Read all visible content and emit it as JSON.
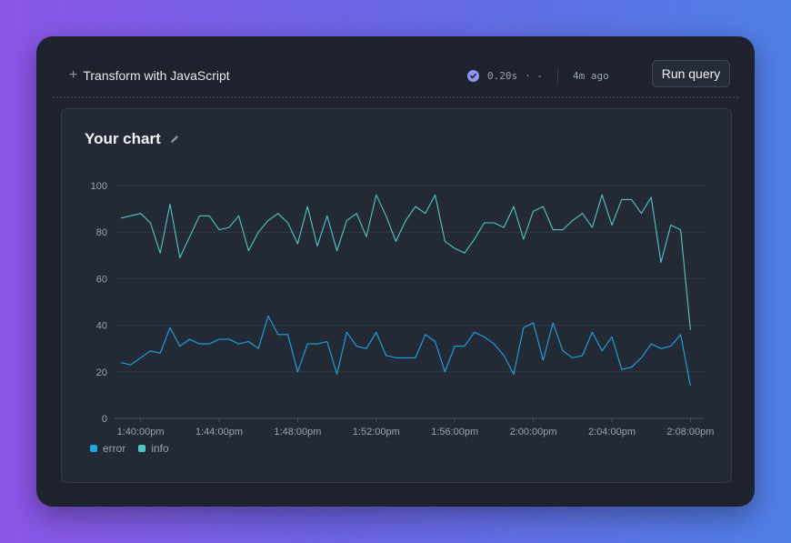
{
  "toolbar": {
    "transform_label": "Transform with JavaScript",
    "status": {
      "duration": "0.20s",
      "dots": "· -",
      "time_ago": "4m ago"
    },
    "run_label": "Run query"
  },
  "chart_panel": {
    "title": "Your chart",
    "icons": {
      "edit": "pencil-icon",
      "status": "check-circle-icon",
      "add": "plus-icon"
    }
  },
  "colors": {
    "error": "#1ea7e4",
    "info": "#4fc7c6",
    "accent": "#8f96f2"
  },
  "chart_data": {
    "type": "line",
    "title": "",
    "xlabel": "",
    "ylabel": "",
    "ylim": [
      0,
      100
    ],
    "yticks": [
      0,
      20,
      40,
      60,
      80,
      100
    ],
    "xtick_labels": [
      "1:40:00pm",
      "1:44:00pm",
      "1:48:00pm",
      "1:52:00pm",
      "1:56:00pm",
      "2:00:00pm",
      "2:04:00pm",
      "2:08:00pm"
    ],
    "grid": true,
    "legend_position": "bottom-left",
    "x_start": "1:39:00pm",
    "x_step_seconds": 30,
    "series": [
      {
        "name": "error",
        "values": [
          24,
          23,
          26,
          29,
          28,
          39,
          31,
          34,
          32,
          32,
          34,
          34,
          32,
          33,
          30,
          44,
          36,
          36,
          20,
          32,
          32,
          33,
          19,
          37,
          31,
          30,
          37,
          27,
          26,
          26,
          26,
          36,
          33,
          20,
          31,
          31,
          37,
          35,
          32,
          27,
          19,
          39,
          41,
          25,
          41,
          29,
          26,
          27,
          37,
          29,
          35,
          21,
          22,
          26,
          32,
          30,
          31,
          36,
          14
        ]
      },
      {
        "name": "info",
        "values": [
          86,
          87,
          88,
          84,
          71,
          92,
          69,
          78,
          87,
          87,
          81,
          82,
          87,
          72,
          80,
          85,
          88,
          84,
          75,
          91,
          74,
          87,
          72,
          85,
          88,
          78,
          96,
          87,
          76,
          85,
          91,
          88,
          96,
          76,
          73,
          71,
          77,
          84,
          84,
          82,
          91,
          77,
          89,
          91,
          81,
          81,
          85,
          88,
          82,
          96,
          83,
          94,
          94,
          88,
          95,
          67,
          83,
          81,
          38
        ]
      }
    ]
  }
}
